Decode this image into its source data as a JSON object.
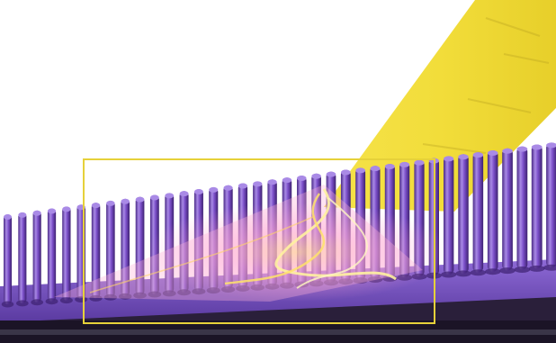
{
  "scene": {
    "background_color": "#ffffff",
    "pillar_color": "#7b4fc9",
    "pillar_highlight_color": "#a98ae6",
    "pillar_shadow_color": "#3d2170",
    "beam_color": "#f2dd3a",
    "beam_edge_color": "#c9b21c",
    "glow_color": "#ff9fd0",
    "filament_color": "#fff2a0",
    "selection_frame_color": "#e6d13a",
    "base_color": "#1b1426"
  }
}
